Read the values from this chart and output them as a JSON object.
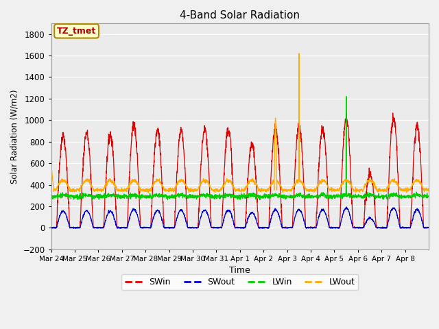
{
  "title": "4-Band Solar Radiation",
  "xlabel": "Time",
  "ylabel": "Solar Radiation (W/m2)",
  "ylim": [
    -200,
    1900
  ],
  "yticks": [
    -200,
    0,
    200,
    400,
    600,
    800,
    1000,
    1200,
    1400,
    1600,
    1800
  ],
  "xlabels": [
    "Mar 24",
    "Mar 25",
    "Mar 26",
    "Mar 27",
    "Mar 28",
    "Mar 29",
    "Mar 30",
    "Mar 31",
    "Apr 1",
    "Apr 2",
    "Apr 3",
    "Apr 4",
    "Apr 5",
    "Apr 6",
    "Apr 7",
    "Apr 8"
  ],
  "colors": {
    "SWin": "#dd0000",
    "SWout": "#0000cc",
    "LWin": "#00cc00",
    "LWout": "#ffaa00"
  },
  "fig_facecolor": "#f0f0f0",
  "ax_facecolor": "#ebebeb",
  "legend_label": "TZ_tmet",
  "legend_box_color": "#ffffcc",
  "legend_text_color": "#aa0000",
  "grid_color": "#ffffff",
  "title_fontsize": 11,
  "days": 16,
  "pts_per_day": 144,
  "swin_peaks": [
    850,
    880,
    870,
    960,
    900,
    910,
    910,
    920,
    780,
    940,
    950,
    930,
    1020,
    500,
    1020,
    940
  ],
  "lwout_spike_day": 10,
  "lwout_spike_val": 1620,
  "lwout_hump_day": 9,
  "lwout_hump_val": 1020,
  "lwin_spike_day": 12,
  "lwin_spike_val": 1220
}
